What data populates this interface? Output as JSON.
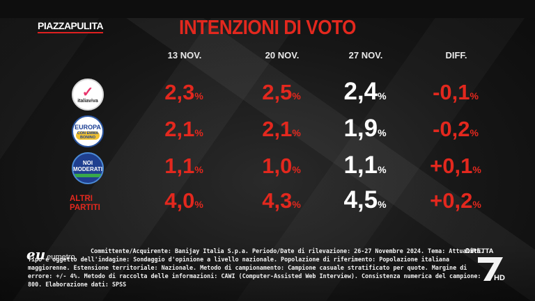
{
  "brand": "PIAZZAPULITA",
  "title": "INTENZIONI DI VOTO",
  "broadcaster": {
    "label": "DIRETTA",
    "channel_mark": "7",
    "hd": "HD"
  },
  "pollster": {
    "mark": "eu",
    "name": "eumetro"
  },
  "parties": [
    {
      "logo_main": "✓",
      "logo_text": "italiaviva",
      "logo_icon": "italia-viva-logo"
    },
    {
      "logo_main": "EUROPA",
      "logo_text": "CON EMMA BONINO",
      "logo_icon": "piu-europa-logo"
    },
    {
      "logo_main": "NOI MODERATI",
      "logo_icon": "noi-moderati-logo"
    },
    {
      "label": "ALTRI PARTITI"
    }
  ],
  "chart_data": {
    "type": "table",
    "title": "INTENZIONI DI VOTO",
    "columns": [
      "13 NOV.",
      "20 NOV.",
      "27 NOV.",
      "DIFF."
    ],
    "unit": "%",
    "rows": [
      {
        "values": [
          "2,3",
          "2,5",
          "2,4",
          "-0,1"
        ]
      },
      {
        "values": [
          "2,1",
          "2,1",
          "1,9",
          "-0,2"
        ]
      },
      {
        "values": [
          "1,1",
          "1,0",
          "1,1",
          "+0,1"
        ]
      },
      {
        "name": "ALTRI PARTITI",
        "values": [
          "4,0",
          "4,3",
          "4,5",
          "+0,2"
        ]
      }
    ],
    "colors": {
      "historical": "#e3281e",
      "current": "#ffffff",
      "diff": "#e3281e"
    }
  },
  "methodology_note": "Committente/Acquirente: Banijay Italia S.p.a. Periodo/Date di rilevazione: 26-27 Novembre 2024. Tema: Attualità. Tipo e oggetto dell'indagine: Sondaggio d'opinione a livello nazionale. Popolazione di riferimento: Popolazione italiana maggiorenne. Estensione territoriale: Nazionale. Metodo di campionamento: Campione casuale stratificato per quote. Margine di errore: +/- 4%. Metodo di raccolta delle informazioni: CAWI (Computer-Assisted Web Interview). Consistenza numerica del campione: 800. Elaborazione dati: SPSS"
}
